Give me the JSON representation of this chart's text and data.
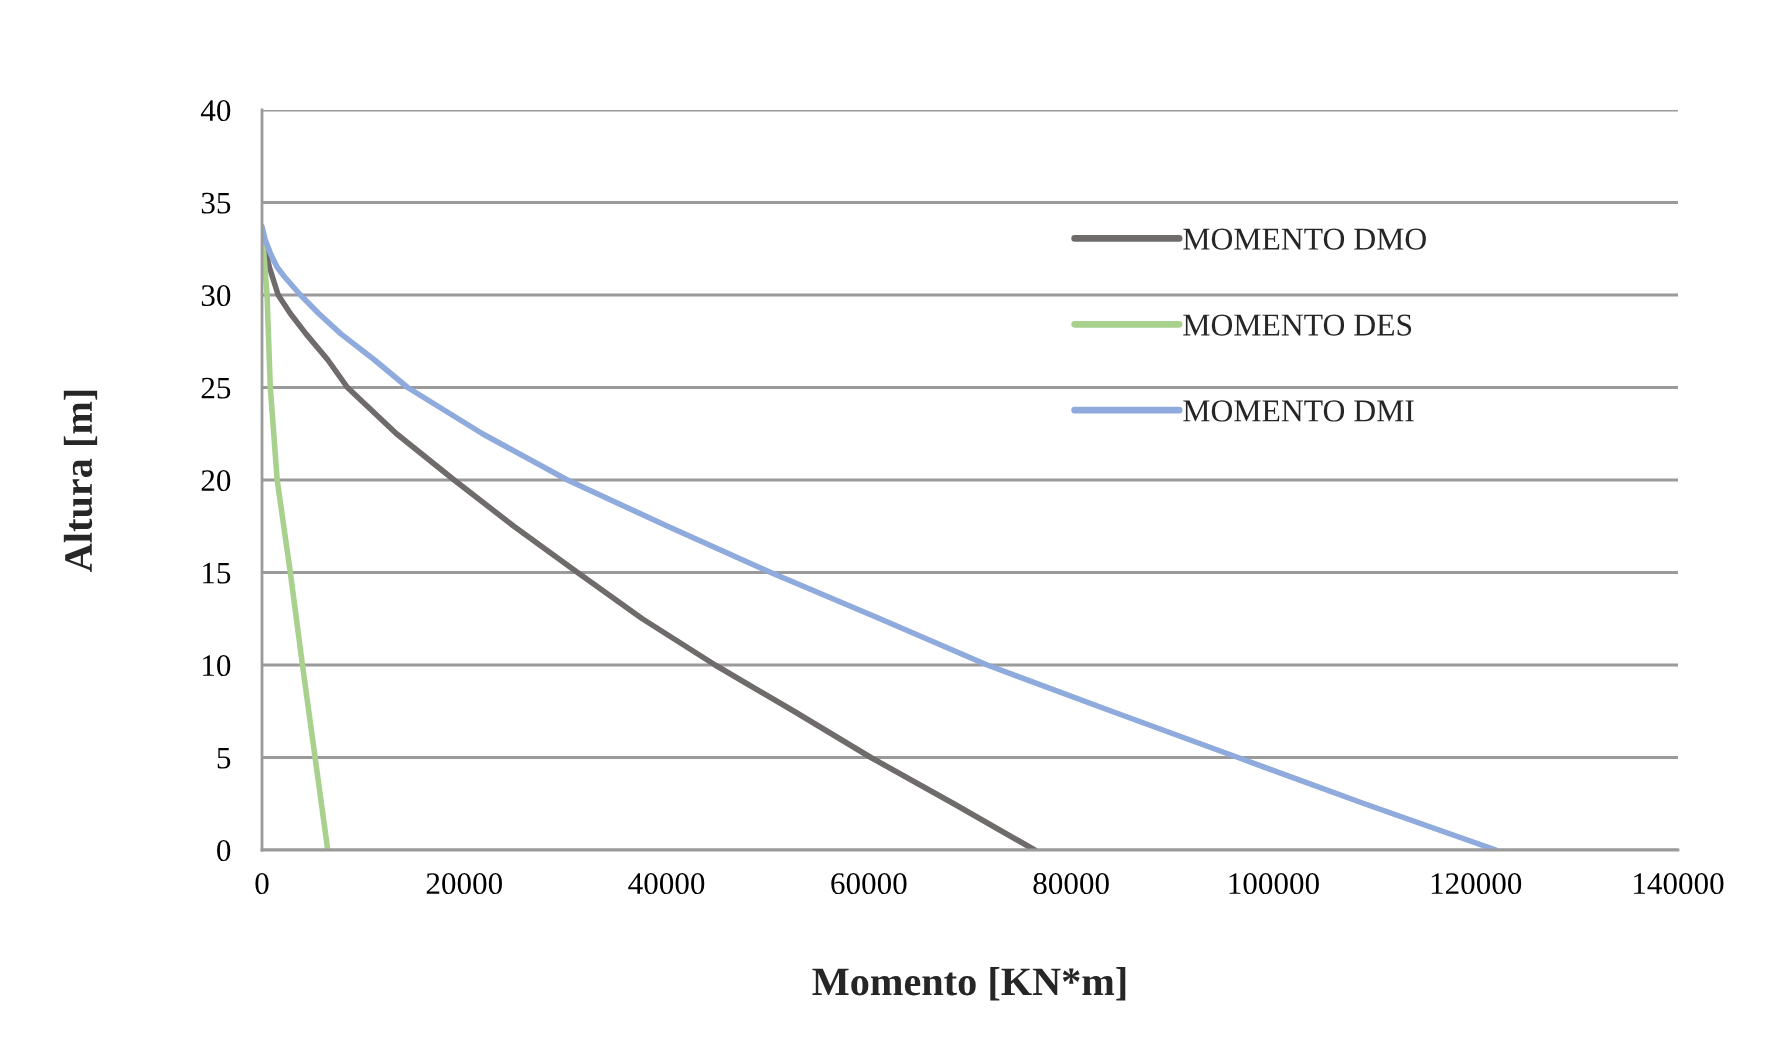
{
  "chart_data": {
    "type": "line",
    "xlabel": "Momento [KN*m]",
    "ylabel": "Altura [m]",
    "xlim": [
      0,
      140000
    ],
    "xticks": [
      0,
      20000,
      40000,
      60000,
      80000,
      100000,
      120000,
      140000
    ],
    "ylim": [
      0,
      40
    ],
    "yticks": [
      0,
      5,
      10,
      15,
      20,
      25,
      30,
      35,
      40
    ],
    "grid": "y",
    "legend": "top right",
    "marker": "none",
    "line_style": "solid",
    "series": [
      {
        "name": "MOMENTO DMO",
        "color": "#6f6b6b",
        "x": [
          0,
          150,
          400,
          730,
          1600,
          2800,
          4350,
          6500,
          8450,
          13300,
          19000,
          24900,
          31200,
          37600,
          44800,
          52600,
          60200,
          68400,
          76400
        ],
        "values": [
          33.5,
          33,
          32.3,
          31.5,
          30,
          29,
          27.9,
          26.5,
          25,
          22.5,
          20,
          17.5,
          15,
          12.5,
          10,
          7.5,
          5,
          2.5,
          0
        ]
      },
      {
        "name": "MOMENTO DES",
        "color": "#a9d18e",
        "x": [
          0,
          500,
          820,
          1500,
          2800,
          4000,
          5250,
          6500
        ],
        "values": [
          33.5,
          30,
          25,
          20,
          15,
          10,
          5,
          0
        ]
      },
      {
        "name": "MOMENTO DMI",
        "color": "#8faadc",
        "x": [
          0,
          300,
          870,
          1500,
          2200,
          3800,
          5600,
          7800,
          11100,
          14400,
          21800,
          30200,
          40100,
          50300,
          61100,
          71700,
          84000,
          96500,
          109000,
          122000
        ],
        "values": [
          33.7,
          33,
          32.2,
          31.5,
          31,
          30,
          29,
          27.9,
          26.5,
          25,
          22.5,
          20,
          17.5,
          15,
          12.5,
          10,
          7.5,
          5,
          2.5,
          0
        ]
      }
    ]
  }
}
